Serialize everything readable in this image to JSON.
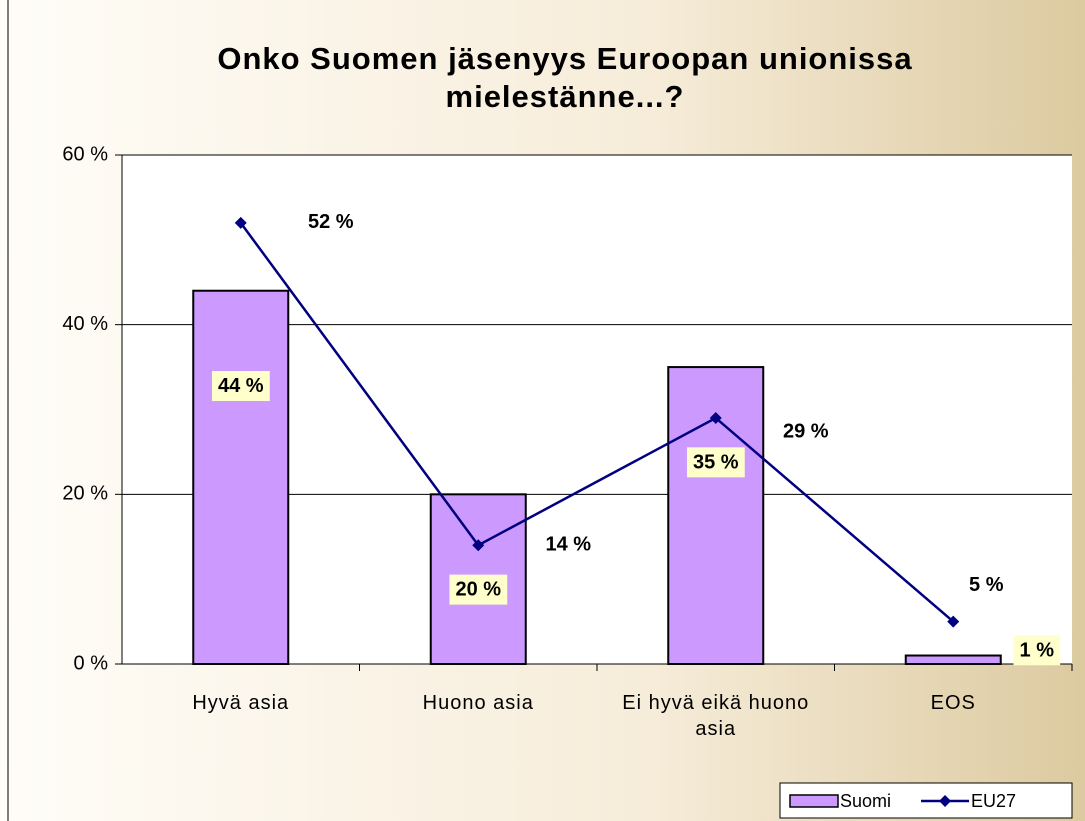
{
  "chart_data": {
    "type": "bar",
    "title": "Onko Suomen jäsenyys Euroopan unionissa mielestänne...?",
    "categories": [
      "Hyvä asia",
      "Huono asia",
      "Ei hyvä eikä huono asia",
      "EOS"
    ],
    "series": [
      {
        "name": "Suomi",
        "type": "bar",
        "color": "#cc99ff",
        "values": [
          44,
          20,
          35,
          1
        ],
        "value_labels": [
          "44 %",
          "20 %",
          "35 %",
          "1 %"
        ]
      },
      {
        "name": "EU27",
        "type": "line",
        "color": "#000080",
        "values": [
          52,
          14,
          29,
          5
        ],
        "value_labels": [
          "52 %",
          "14 %",
          "29 %",
          "5 %"
        ]
      }
    ],
    "ylim": [
      0,
      60
    ],
    "yticks": [
      {
        "value": 0,
        "label": "0 %"
      },
      {
        "value": 20,
        "label": "20 %"
      },
      {
        "value": 40,
        "label": "40 %"
      },
      {
        "value": 60,
        "label": "60 %"
      }
    ],
    "grid": true,
    "legend": "bottom-right"
  }
}
